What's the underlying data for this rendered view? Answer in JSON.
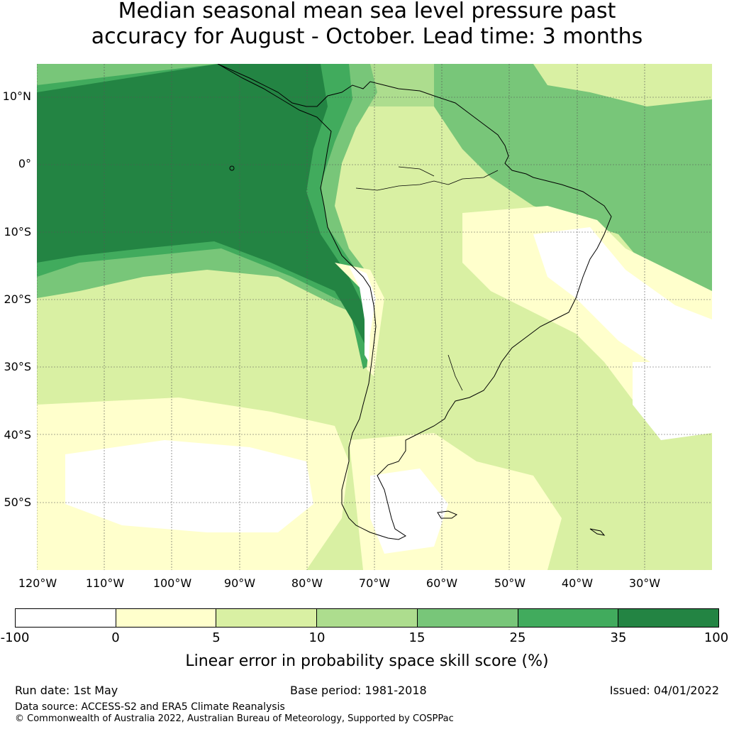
{
  "title": {
    "line1": "Median seasonal mean sea level pressure past",
    "line2": "accuracy for August - October. Lead time: 3 months"
  },
  "map": {
    "latitude_labels": [
      "10°N",
      "0°",
      "10°S",
      "20°S",
      "30°S",
      "40°S",
      "50°S"
    ],
    "longitude_labels": [
      "120°W",
      "110°W",
      "100°W",
      "90°W",
      "80°W",
      "70°W",
      "60°W",
      "50°W",
      "40°W",
      "30°W"
    ],
    "extent": {
      "lon_min": -120,
      "lon_max": -20,
      "lat_min": -60,
      "lat_max": 15
    },
    "gridlines": true
  },
  "legend": {
    "ticks": [
      "-100",
      "0",
      "5",
      "10",
      "15",
      "25",
      "35",
      "100"
    ],
    "colors": [
      "#ffffff",
      "#ffffcc",
      "#d9f0a3",
      "#addd8e",
      "#78c679",
      "#41ab5d",
      "#238443"
    ],
    "label": "Linear error in probability space skill score (%)"
  },
  "footer": {
    "run_date": "Run date: 1st May",
    "base_period": "Base period: 1981-2018",
    "issued": "Issued: 04/01/2022",
    "data_source": "Data source: ACCESS-S2 and ERA5 Climate Reanalysis",
    "copyright": "© Commonwealth of Australia 2022, Australian Bureau of Meteorology, Supported by COSPPac"
  }
}
